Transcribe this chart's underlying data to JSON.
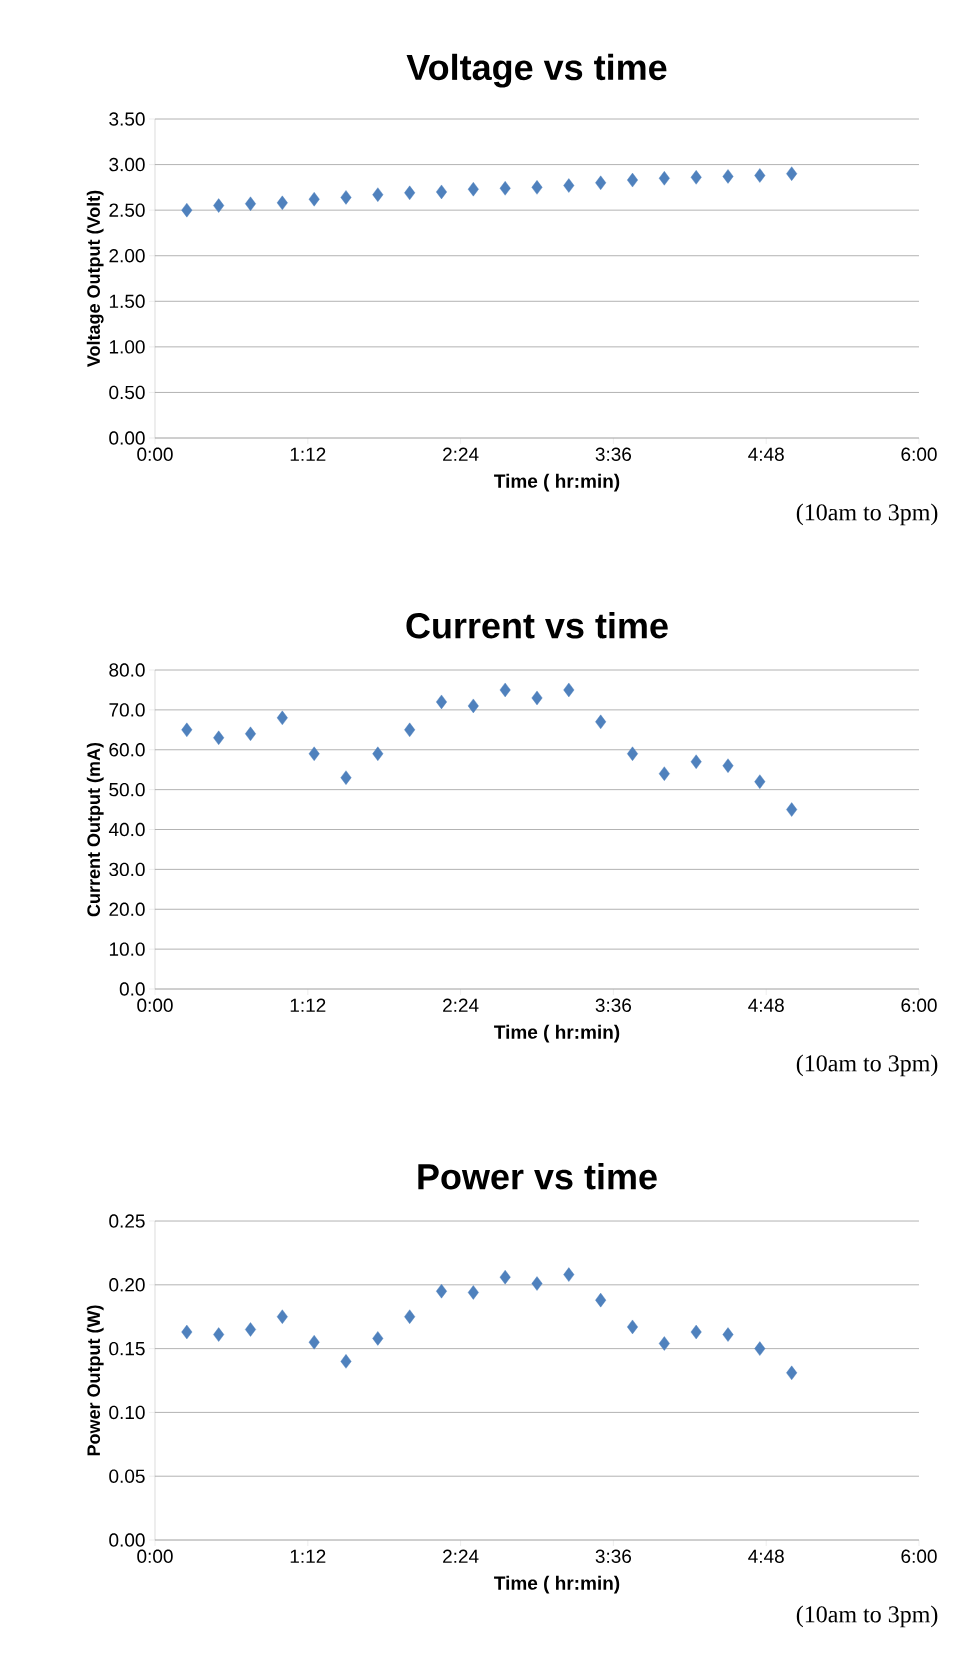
{
  "chart_data": [
    {
      "type": "scatter",
      "title": "Voltage vs time",
      "xlabel": "Time ( hr:min)",
      "ylabel": "Voltage Output (Volt)",
      "annotations": [
        "(10am to 3pm)"
      ],
      "x": [
        0.25,
        0.5,
        0.75,
        1.0,
        1.25,
        1.5,
        1.75,
        2.0,
        2.25,
        2.5,
        2.75,
        3.0,
        3.25,
        3.5,
        3.75,
        4.0,
        4.25,
        4.5,
        4.75,
        5.0
      ],
      "series": [
        {
          "color": "#4f81bd",
          "values": [
            2.5,
            2.55,
            2.57,
            2.58,
            2.62,
            2.64,
            2.67,
            2.69,
            2.7,
            2.73,
            2.74,
            2.75,
            2.77,
            2.8,
            2.83,
            2.85,
            2.86,
            2.87,
            2.88,
            2.9
          ]
        }
      ],
      "xlim": [
        0,
        6
      ],
      "xticks": [
        {
          "value": 0,
          "label": "0:00"
        },
        {
          "value": 1.2,
          "label": "1:12"
        },
        {
          "value": 2.4,
          "label": "2:24"
        },
        {
          "value": 3.6,
          "label": "3:36"
        },
        {
          "value": 4.8,
          "label": "4:48"
        },
        {
          "value": 6,
          "label": "6:00"
        }
      ],
      "ylim": [
        0,
        3.5
      ],
      "yticks": [
        {
          "value": 0,
          "label": "0.00"
        },
        {
          "value": 0.5,
          "label": "0.50"
        },
        {
          "value": 1,
          "label": "1.00"
        },
        {
          "value": 1.5,
          "label": "1.50"
        },
        {
          "value": 2,
          "label": "2.00"
        },
        {
          "value": 2.5,
          "label": "2.50"
        },
        {
          "value": 3,
          "label": "3.00"
        },
        {
          "value": 3.5,
          "label": "3.50"
        }
      ],
      "grid": "y",
      "marker": "diamond"
    },
    {
      "type": "scatter",
      "title": "Current vs time",
      "xlabel": "Time ( hr:min)",
      "ylabel": "Current Output (mA)",
      "annotations": [
        "(10am to 3pm)"
      ],
      "x": [
        0.25,
        0.5,
        0.75,
        1.0,
        1.25,
        1.5,
        1.75,
        2.0,
        2.25,
        2.5,
        2.75,
        3.0,
        3.25,
        3.5,
        3.75,
        4.0,
        4.25,
        4.5,
        4.75,
        5.0
      ],
      "series": [
        {
          "color": "#4f81bd",
          "values": [
            65,
            63,
            64,
            68,
            59,
            53,
            59,
            65,
            72,
            71,
            75,
            73,
            75,
            67,
            59,
            54,
            57,
            56,
            52,
            45
          ]
        }
      ],
      "xlim": [
        0,
        6
      ],
      "xticks": [
        {
          "value": 0,
          "label": "0:00"
        },
        {
          "value": 1.2,
          "label": "1:12"
        },
        {
          "value": 2.4,
          "label": "2:24"
        },
        {
          "value": 3.6,
          "label": "3:36"
        },
        {
          "value": 4.8,
          "label": "4:48"
        },
        {
          "value": 6,
          "label": "6:00"
        }
      ],
      "ylim": [
        0,
        80
      ],
      "yticks": [
        {
          "value": 0,
          "label": "0.0"
        },
        {
          "value": 10,
          "label": "10.0"
        },
        {
          "value": 20,
          "label": "20.0"
        },
        {
          "value": 30,
          "label": "30.0"
        },
        {
          "value": 40,
          "label": "40.0"
        },
        {
          "value": 50,
          "label": "50.0"
        },
        {
          "value": 60,
          "label": "60.0"
        },
        {
          "value": 70,
          "label": "70.0"
        },
        {
          "value": 80,
          "label": "80.0"
        }
      ],
      "grid": "y",
      "marker": "diamond"
    },
    {
      "type": "scatter",
      "title": "Power vs time",
      "xlabel": "Time ( hr:min)",
      "ylabel": "Power Output (W)",
      "annotations": [
        "(10am to 3pm)"
      ],
      "x": [
        0.25,
        0.5,
        0.75,
        1.0,
        1.25,
        1.5,
        1.75,
        2.0,
        2.25,
        2.5,
        2.75,
        3.0,
        3.25,
        3.5,
        3.75,
        4.0,
        4.25,
        4.5,
        4.75,
        5.0
      ],
      "series": [
        {
          "color": "#4f81bd",
          "values": [
            0.163,
            0.161,
            0.165,
            0.175,
            0.155,
            0.14,
            0.158,
            0.175,
            0.195,
            0.194,
            0.206,
            0.201,
            0.208,
            0.188,
            0.167,
            0.154,
            0.163,
            0.161,
            0.15,
            0.131
          ]
        }
      ],
      "xlim": [
        0,
        6
      ],
      "xticks": [
        {
          "value": 0,
          "label": "0:00"
        },
        {
          "value": 1.2,
          "label": "1:12"
        },
        {
          "value": 2.4,
          "label": "2:24"
        },
        {
          "value": 3.6,
          "label": "3:36"
        },
        {
          "value": 4.8,
          "label": "4:48"
        },
        {
          "value": 6,
          "label": "6:00"
        }
      ],
      "ylim": [
        0,
        0.25
      ],
      "yticks": [
        {
          "value": 0,
          "label": "0.00"
        },
        {
          "value": 0.05,
          "label": "0.05"
        },
        {
          "value": 0.1,
          "label": "0.10"
        },
        {
          "value": 0.15,
          "label": "0.15"
        },
        {
          "value": 0.2,
          "label": "0.20"
        },
        {
          "value": 0.25,
          "label": "0.25"
        }
      ],
      "grid": "y",
      "marker": "diamond"
    }
  ]
}
